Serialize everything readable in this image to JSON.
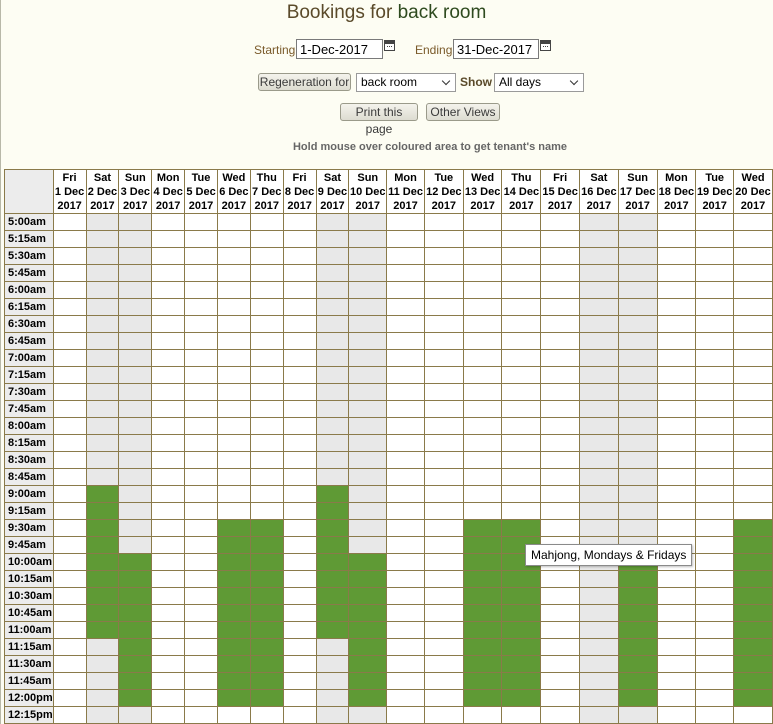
{
  "title": {
    "prefix": "Bookings for",
    "room": "back room"
  },
  "date_range": {
    "starting_label": "Starting",
    "starting_value": "1-Dec-2017",
    "ending_label": "Ending",
    "ending_value": "31-Dec-2017",
    "calendar_icon": "calendar-icon"
  },
  "controls": {
    "regeneration_label": "Regeneration for",
    "room_select_value": "back room",
    "show_label": "Show",
    "show_select_value": "All days",
    "print_label": "Print this page",
    "other_views_label": "Other Views"
  },
  "hint": "Hold mouse over coloured area to get tenant's name",
  "tooltip": "Mahjong, Mondays & Fridays",
  "colors": {
    "booked": "#5f9a35",
    "weekend": "#e8e8e8",
    "weekday": "#ffffff"
  },
  "days": [
    {
      "dow": "Fri",
      "date": "1 Dec",
      "year": "2017",
      "weekend": false
    },
    {
      "dow": "Sat",
      "date": "2 Dec",
      "year": "2017",
      "weekend": true
    },
    {
      "dow": "Sun",
      "date": "3 Dec",
      "year": "2017",
      "weekend": true
    },
    {
      "dow": "Mon",
      "date": "4 Dec",
      "year": "2017",
      "weekend": false
    },
    {
      "dow": "Tue",
      "date": "5 Dec",
      "year": "2017",
      "weekend": false
    },
    {
      "dow": "Wed",
      "date": "6 Dec",
      "year": "2017",
      "weekend": false
    },
    {
      "dow": "Thu",
      "date": "7 Dec",
      "year": "2017",
      "weekend": false
    },
    {
      "dow": "Fri",
      "date": "8 Dec",
      "year": "2017",
      "weekend": false
    },
    {
      "dow": "Sat",
      "date": "9 Dec",
      "year": "2017",
      "weekend": true
    },
    {
      "dow": "Sun",
      "date": "10 Dec",
      "year": "2017",
      "weekend": true
    },
    {
      "dow": "Mon",
      "date": "11 Dec",
      "year": "2017",
      "weekend": false
    },
    {
      "dow": "Tue",
      "date": "12 Dec",
      "year": "2017",
      "weekend": false
    },
    {
      "dow": "Wed",
      "date": "13 Dec",
      "year": "2017",
      "weekend": false
    },
    {
      "dow": "Thu",
      "date": "14 Dec",
      "year": "2017",
      "weekend": false
    },
    {
      "dow": "Fri",
      "date": "15 Dec",
      "year": "2017",
      "weekend": false
    },
    {
      "dow": "Sat",
      "date": "16 Dec",
      "year": "2017",
      "weekend": true
    },
    {
      "dow": "Sun",
      "date": "17 Dec",
      "year": "2017",
      "weekend": true
    },
    {
      "dow": "Mon",
      "date": "18 Dec",
      "year": "2017",
      "weekend": false
    },
    {
      "dow": "Tue",
      "date": "19 Dec",
      "year": "2017",
      "weekend": false
    },
    {
      "dow": "Wed",
      "date": "20 Dec",
      "year": "2017",
      "weekend": false
    }
  ],
  "times": [
    "5:00am",
    "5:15am",
    "5:30am",
    "5:45am",
    "6:00am",
    "6:15am",
    "6:30am",
    "6:45am",
    "7:00am",
    "7:15am",
    "7:30am",
    "7:45am",
    "8:00am",
    "8:15am",
    "8:30am",
    "8:45am",
    "9:00am",
    "9:15am",
    "9:30am",
    "9:45am",
    "10:00am",
    "10:15am",
    "10:30am",
    "10:45am",
    "11:00am",
    "11:15am",
    "11:30am",
    "11:45am",
    "12:00pm",
    "12:15pm"
  ],
  "bookings": [
    {
      "day": 1,
      "from": "9:00am",
      "to": "11:00am"
    },
    {
      "day": 2,
      "from": "10:00am",
      "to": "12:00pm"
    },
    {
      "day": 5,
      "from": "9:30am",
      "to": "12:00pm"
    },
    {
      "day": 6,
      "from": "9:30am",
      "to": "12:00pm"
    },
    {
      "day": 8,
      "from": "9:00am",
      "to": "11:00am"
    },
    {
      "day": 9,
      "from": "10:00am",
      "to": "12:00pm"
    },
    {
      "day": 12,
      "from": "9:30am",
      "to": "12:00pm"
    },
    {
      "day": 13,
      "from": "9:30am",
      "to": "12:00pm"
    },
    {
      "day": 16,
      "from": "10:00am",
      "to": "12:00pm"
    },
    {
      "day": 19,
      "from": "9:30am",
      "to": "12:00pm"
    }
  ]
}
